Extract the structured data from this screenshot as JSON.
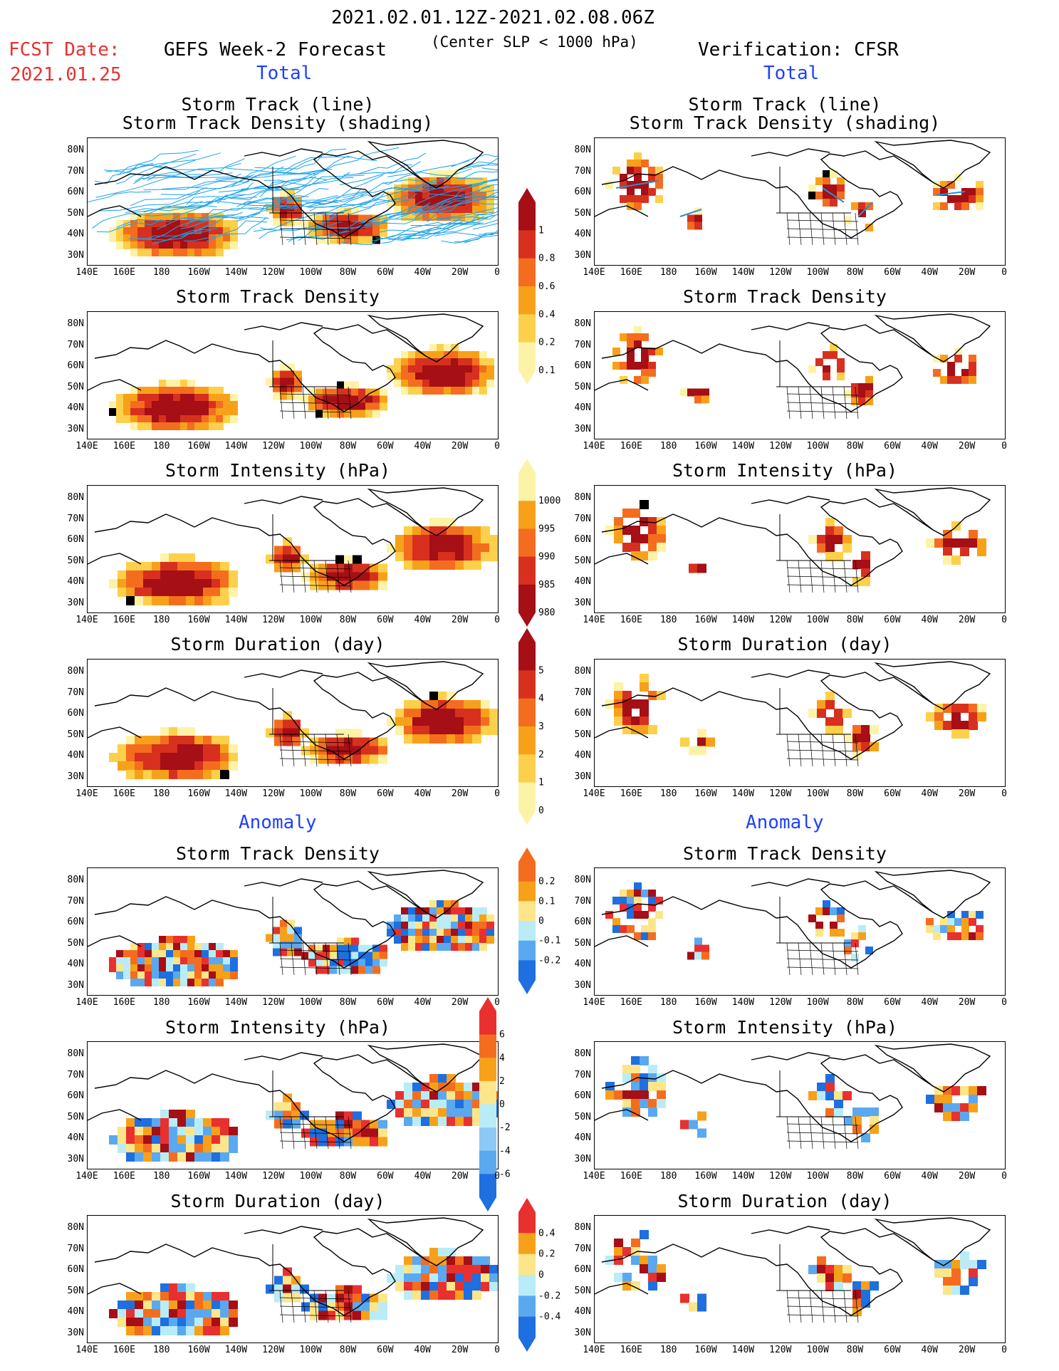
{
  "header": {
    "date_range": "2021.02.01.12Z-2021.02.08.06Z",
    "subtitle": "(Center SLP < 1000 hPa)",
    "fcst_label": "FCST Date:",
    "fcst_date": "2021.01.25",
    "left_model": "GEFS Week-2 Forecast",
    "right_model": "Verification: CFSR",
    "total_left": "Total",
    "total_right": "Total",
    "anomaly_left": "Anomaly",
    "anomaly_right": "Anomaly"
  },
  "panel_titles": {
    "track_line": "Storm Track (line)",
    "track_shading": "Storm Track Density (shading)",
    "density": "Storm Track Density",
    "intensity": "Storm Intensity (hPa)",
    "duration": "Storm Duration (day)"
  },
  "axes": {
    "lat_ticks": [
      "80N",
      "70N",
      "60N",
      "50N",
      "40N",
      "30N"
    ],
    "lon_ticks": [
      "140E",
      "160E",
      "180",
      "160W",
      "140W",
      "120W",
      "100W",
      "80W",
      "60W",
      "40W",
      "20W",
      "0"
    ]
  },
  "colorbars": {
    "density_total": {
      "ticks": [
        "1",
        "0.8",
        "0.6",
        "0.4",
        "0.2",
        "0.1"
      ],
      "colors": [
        "#a50f15",
        "#d7301f",
        "#f46d1f",
        "#f7a11a",
        "#fcd04a",
        "#fdf3a8"
      ]
    },
    "intensity_total": {
      "ticks": [
        "1000",
        "995",
        "990",
        "985",
        "980"
      ],
      "colors": [
        "#fdf3a8",
        "#f7a11a",
        "#f46d1f",
        "#d7301f",
        "#a50f15"
      ]
    },
    "duration_total": {
      "ticks": [
        "5",
        "4",
        "3",
        "2",
        "1",
        "0"
      ],
      "colors": [
        "#a50f15",
        "#d7301f",
        "#f46d1f",
        "#f7a11a",
        "#fcd04a",
        "#fdf3a8"
      ]
    },
    "density_anom": {
      "ticks": [
        "0.2",
        "0.1",
        "0",
        "-0.1",
        "-0.2"
      ],
      "colors": [
        "#f46d1f",
        "#f7a11a",
        "#fde68a",
        "#b9ecf7",
        "#5aa9f0",
        "#1e6fe0"
      ]
    },
    "intensity_anom": {
      "ticks": [
        "6",
        "4",
        "2",
        "0",
        "-2",
        "-4",
        "-6"
      ],
      "colors": [
        "#e8312f",
        "#f46d1f",
        "#f7a11a",
        "#fde68a",
        "#b9ecf7",
        "#8ec9f5",
        "#5aa9f0",
        "#1e6fe0"
      ]
    },
    "duration_anom": {
      "ticks": [
        "0.4",
        "0.2",
        "0",
        "-0.2",
        "-0.4"
      ],
      "colors": [
        "#e8312f",
        "#f7a11a",
        "#fde68a",
        "#b9ecf7",
        "#5aa9f0",
        "#1e6fe0"
      ]
    }
  },
  "chart_data": [
    {
      "type": "heatmap",
      "panel": "forecast-total-track",
      "title": "Storm Track (line) / Storm Track Density (shading)",
      "track_color": "#1aa3e8"
    },
    {
      "type": "heatmap",
      "panel": "verification-total-track",
      "title": "Storm Track (line) / Storm Track Density (shading)"
    },
    {
      "type": "heatmap",
      "panel": "forecast-total-density",
      "title": "Storm Track Density",
      "range": [
        0.1,
        1
      ]
    },
    {
      "type": "heatmap",
      "panel": "verification-total-density",
      "title": "Storm Track Density",
      "range": [
        0.1,
        1
      ]
    },
    {
      "type": "heatmap",
      "panel": "forecast-total-intensity",
      "title": "Storm Intensity (hPa)",
      "range": [
        980,
        1000
      ]
    },
    {
      "type": "heatmap",
      "panel": "verification-total-intensity",
      "title": "Storm Intensity (hPa)",
      "range": [
        980,
        1000
      ]
    },
    {
      "type": "heatmap",
      "panel": "forecast-total-duration",
      "title": "Storm Duration (day)",
      "range": [
        0,
        5
      ]
    },
    {
      "type": "heatmap",
      "panel": "verification-total-duration",
      "title": "Storm Duration (day)",
      "range": [
        0,
        5
      ]
    },
    {
      "type": "heatmap",
      "panel": "forecast-anomaly-density",
      "title": "Storm Track Density",
      "range": [
        -0.2,
        0.2
      ]
    },
    {
      "type": "heatmap",
      "panel": "verification-anomaly-density",
      "title": "Storm Track Density",
      "range": [
        -0.2,
        0.2
      ]
    },
    {
      "type": "heatmap",
      "panel": "forecast-anomaly-intensity",
      "title": "Storm Intensity (hPa)",
      "range": [
        -6,
        6
      ]
    },
    {
      "type": "heatmap",
      "panel": "verification-anomaly-intensity",
      "title": "Storm Intensity (hPa)",
      "range": [
        -6,
        6
      ]
    },
    {
      "type": "heatmap",
      "panel": "forecast-anomaly-duration",
      "title": "Storm Duration (day)",
      "range": [
        -0.4,
        0.4
      ]
    },
    {
      "type": "heatmap",
      "panel": "verification-anomaly-duration",
      "title": "Storm Duration (day)",
      "range": [
        -0.4,
        0.4
      ]
    }
  ]
}
